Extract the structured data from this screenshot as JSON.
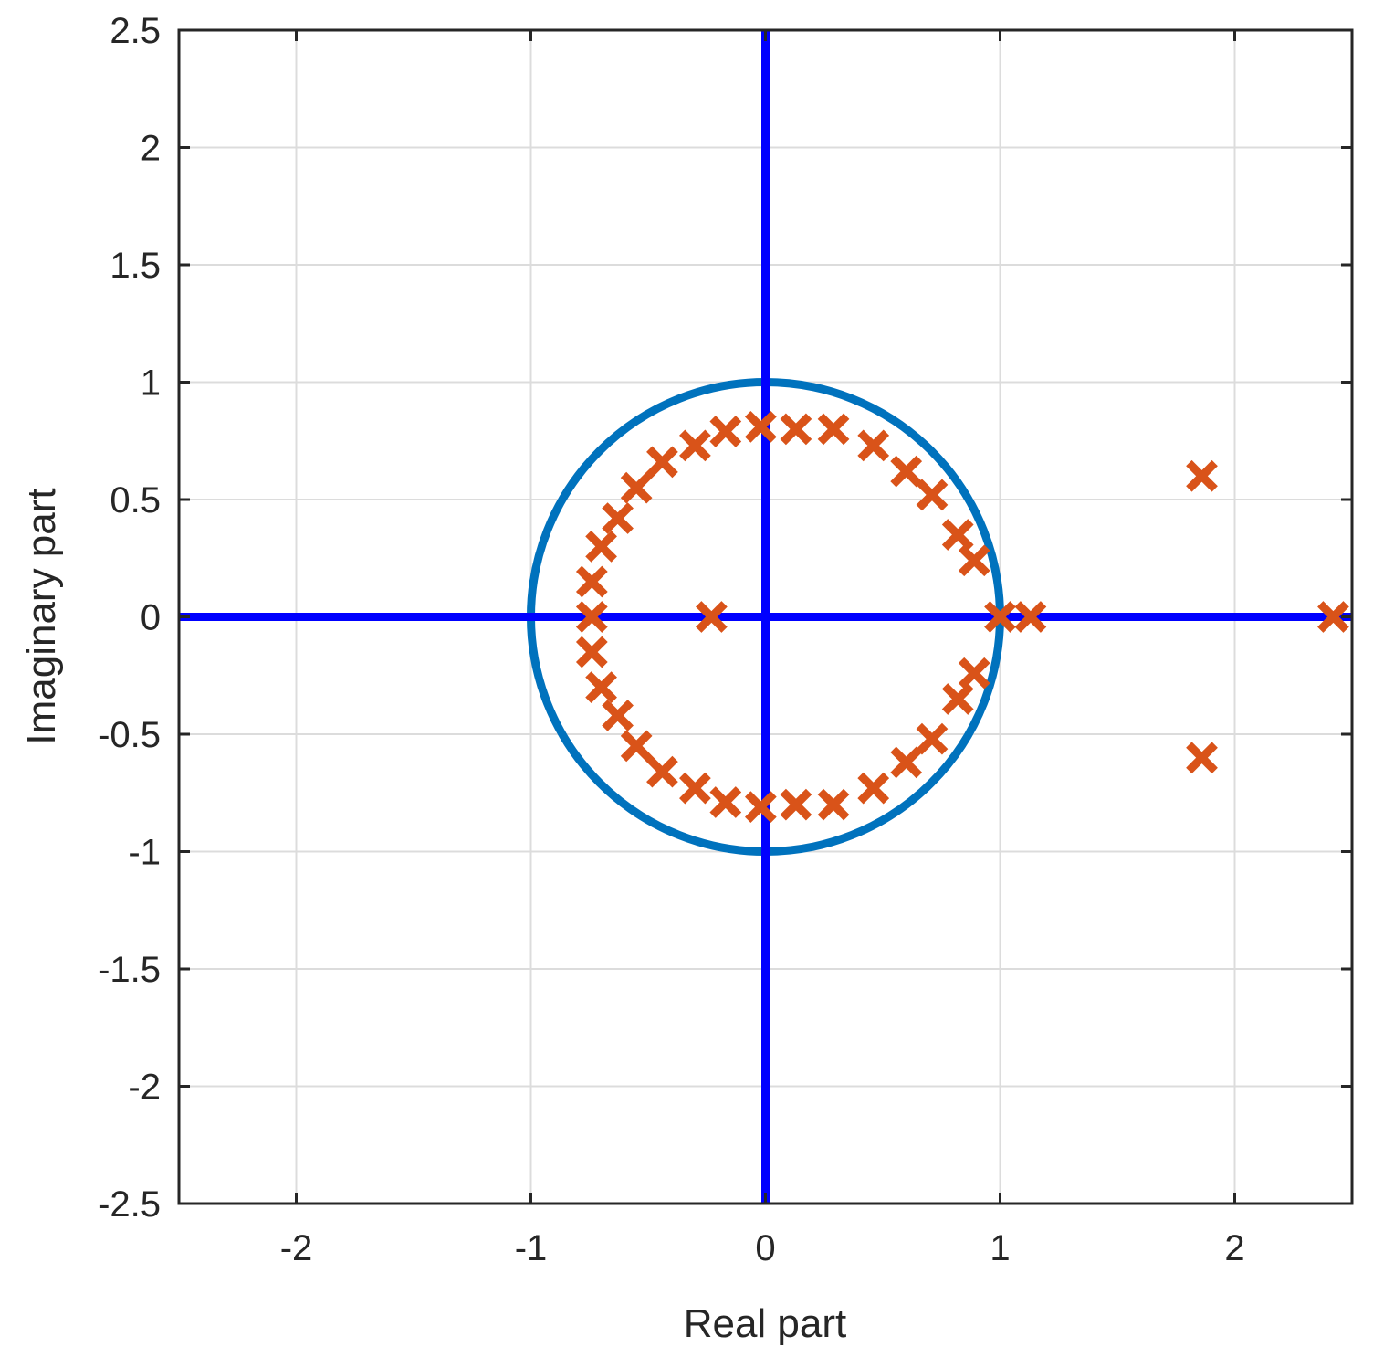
{
  "chart_data": {
    "type": "scatter",
    "title": "",
    "xlabel": "Real part",
    "ylabel": "Imaginary part",
    "xlim": [
      -2.5,
      2.5
    ],
    "ylim": [
      -2.5,
      2.5
    ],
    "xticks": [
      -2,
      -1,
      0,
      1,
      2
    ],
    "xtick_labels": [
      "-2",
      "-1",
      "0",
      "1",
      "2"
    ],
    "yticks": [
      -2.5,
      -2,
      -1.5,
      -1,
      -0.5,
      0,
      0.5,
      1,
      1.5,
      2,
      2.5
    ],
    "ytick_labels": [
      "-2.5",
      "-2",
      "-1.5",
      "-1",
      "-0.5",
      "0",
      "0.5",
      "1",
      "1.5",
      "2",
      "2.5"
    ],
    "grid": true,
    "box": true,
    "colors": {
      "roots": "#D95319",
      "unit_circle": "#0072BD",
      "axes_lines": "#0000FF",
      "grid": "#DCDCDC",
      "frame": "#262626"
    },
    "reference": {
      "unit_circle_radius": 1,
      "lines": [
        "x = 0",
        "y = 0"
      ]
    },
    "series": [
      {
        "marker": "x",
        "points": [
          [
            -0.02,
            0.81
          ],
          [
            0.13,
            0.8
          ],
          [
            0.29,
            0.8
          ],
          [
            0.46,
            0.73
          ],
          [
            0.6,
            0.62
          ],
          [
            0.71,
            0.52
          ],
          [
            0.82,
            0.35
          ],
          [
            0.89,
            0.24
          ],
          [
            -0.17,
            0.79
          ],
          [
            -0.3,
            0.73
          ],
          [
            -0.44,
            0.66
          ],
          [
            -0.55,
            0.55
          ],
          [
            -0.63,
            0.42
          ],
          [
            -0.7,
            0.3
          ],
          [
            -0.74,
            0.15
          ],
          [
            -0.74,
            0.0
          ],
          [
            -0.74,
            -0.15
          ],
          [
            -0.7,
            -0.3
          ],
          [
            -0.63,
            -0.42
          ],
          [
            -0.55,
            -0.55
          ],
          [
            -0.44,
            -0.66
          ],
          [
            -0.3,
            -0.73
          ],
          [
            -0.17,
            -0.79
          ],
          [
            -0.02,
            -0.81
          ],
          [
            0.13,
            -0.8
          ],
          [
            0.29,
            -0.8
          ],
          [
            0.46,
            -0.73
          ],
          [
            0.6,
            -0.62
          ],
          [
            0.71,
            -0.52
          ],
          [
            0.82,
            -0.35
          ],
          [
            0.89,
            -0.24
          ],
          [
            -0.23,
            0.0
          ],
          [
            1.0,
            0.0
          ],
          [
            1.13,
            0.0
          ],
          [
            1.86,
            0.6
          ],
          [
            1.86,
            -0.6
          ],
          [
            2.42,
            0.0
          ]
        ]
      }
    ]
  }
}
